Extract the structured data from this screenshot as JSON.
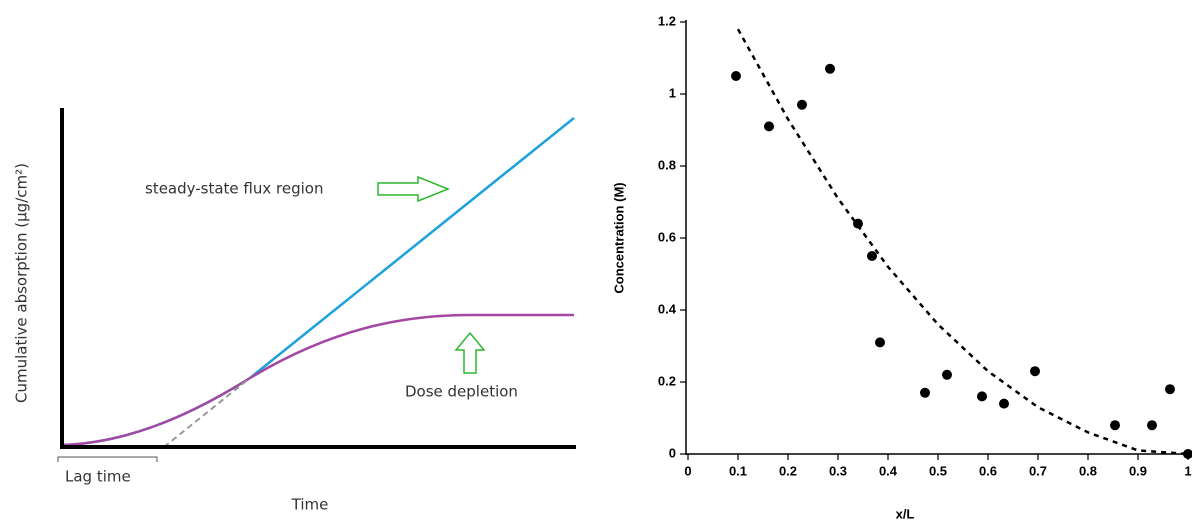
{
  "chart_data": [
    {
      "type": "schematic",
      "ylabel": "Cumulative absorption (µg/cm²)",
      "xlabel": "Time",
      "annotations": [
        "steady-state flux region",
        "Dose depletion",
        "Lag time"
      ]
    },
    {
      "type": "scatter",
      "xlabel": "x/L",
      "ylabel": "Concentration (M)",
      "xlim": [
        0,
        1
      ],
      "ylim": [
        0,
        1.2
      ],
      "xticks": [
        0,
        0.1,
        0.2,
        0.3,
        0.4,
        0.5,
        0.6,
        0.7,
        0.8,
        0.9,
        1
      ],
      "yticks": [
        0,
        0.2,
        0.4,
        0.6,
        0.8,
        1,
        1.2
      ],
      "series": [
        {
          "type": "scatter",
          "color": "#000000",
          "x": [
            0.096,
            0.162,
            0.228,
            0.284,
            0.34,
            0.368,
            0.384,
            0.474,
            0.518,
            0.588,
            0.632,
            0.694,
            0.854,
            0.928,
            0.964,
            1.0
          ],
          "values": [
            1.05,
            0.91,
            0.97,
            1.07,
            0.64,
            0.55,
            0.31,
            0.17,
            0.22,
            0.16,
            0.14,
            0.23,
            0.08,
            0.08,
            0.18,
            0
          ]
        },
        {
          "type": "line",
          "dashed": true,
          "color": "#000000",
          "x": [
            0.1,
            0.2,
            0.3,
            0.4,
            0.5,
            0.6,
            0.7,
            0.8,
            0.9,
            1.0
          ],
          "values": [
            1.18,
            0.93,
            0.71,
            0.52,
            0.36,
            0.23,
            0.13,
            0.06,
            0.01,
            0
          ]
        }
      ]
    }
  ]
}
